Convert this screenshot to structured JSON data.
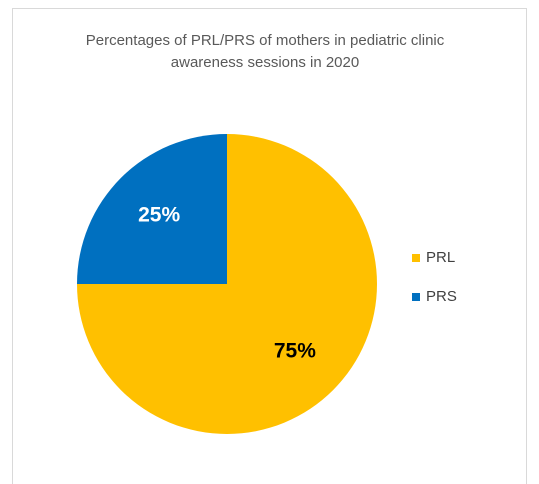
{
  "chart_data": {
    "type": "pie",
    "title": "Percentages of PRL/PRS of mothers in pediatric clinic awareness sessions in 2020",
    "categories": [
      "PRL",
      "PRS"
    ],
    "values": [
      75,
      25
    ],
    "value_labels": [
      "75%",
      "25%"
    ],
    "colors": [
      "#FFC000",
      "#0070C0"
    ],
    "label_colors": [
      "#000000",
      "#ffffff"
    ],
    "legend": "right"
  }
}
